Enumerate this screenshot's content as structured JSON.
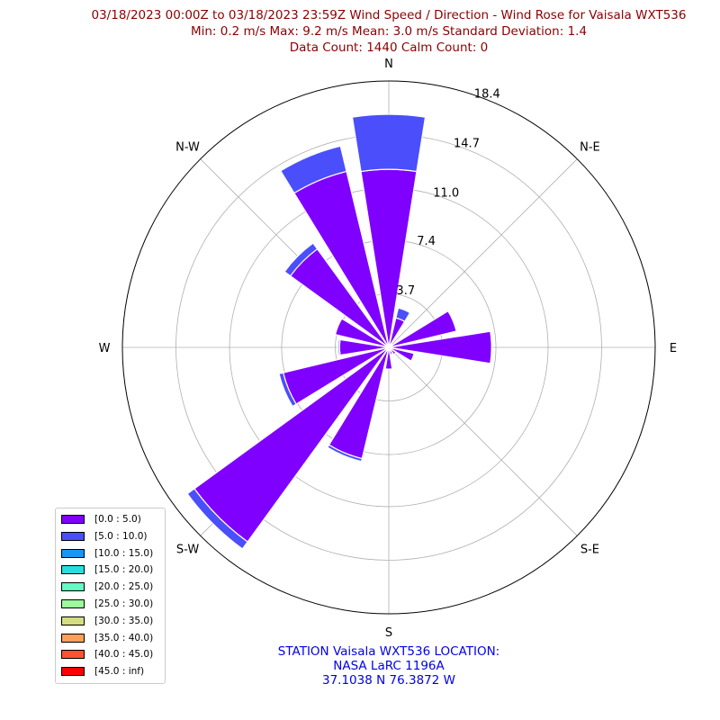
{
  "title": {
    "line1": "03/18/2023 00:00Z to 03/18/2023 23:59Z Wind Speed / Direction - Wind Rose for Vaisala WXT536",
    "line2": "Min: 0.2 m/s   Max: 9.2 m/s   Mean: 3.0 m/s  Standard Deviation: 1.4",
    "line3": "Data Count: 1440  Calm Count:  0"
  },
  "station": {
    "line1": "STATION Vaisala WXT536 LOCATION:",
    "line2": "NASA LaRC 1196A",
    "line3": "37.1038 N 76.3872 W"
  },
  "chart_data": {
    "type": "bar",
    "subtype": "wind-rose",
    "directions": [
      "N",
      "NNE",
      "NE",
      "ENE",
      "E",
      "ESE",
      "SE",
      "SSE",
      "S",
      "SSW",
      "SW",
      "WSW",
      "W",
      "WNW",
      "NW",
      "NNW"
    ],
    "direction_labels": [
      "N",
      "N-E",
      "E",
      "S-E",
      "S",
      "S-W",
      "W",
      "N-W"
    ],
    "radial_ticks": [
      "3.7",
      "7.4",
      "11.0",
      "14.7",
      "18.4"
    ],
    "radial_tick_values": [
      3.7,
      7.4,
      11.0,
      14.7,
      18.4
    ],
    "rmax": 18.4,
    "series": [
      {
        "name": "[0.0 : 5.0)",
        "color": "#7f00ff",
        "values": [
          12.3,
          2.1,
          0.3,
          4.8,
          7.1,
          1.8,
          0.6,
          0.5,
          1.5,
          7.9,
          16.6,
          7.5,
          3.4,
          3.8,
          8.4,
          12.5
        ]
      },
      {
        "name": "[5.0 : 10.0)",
        "color": "#4a4ffb",
        "values": [
          3.8,
          0.7,
          0.0,
          0.0,
          0.0,
          0.0,
          0.0,
          0.0,
          0.0,
          0.2,
          0.6,
          0.3,
          0.1,
          0.0,
          0.5,
          1.8
        ]
      }
    ],
    "legend": {
      "position": "lower-left",
      "entries": [
        {
          "label": "[0.0 : 5.0)",
          "color": "#7f00ff"
        },
        {
          "label": "[5.0 : 10.0)",
          "color": "#4a4ffb"
        },
        {
          "label": "[10.0 : 15.0)",
          "color": "#1996f3"
        },
        {
          "label": "[15.0 : 20.0)",
          "color": "#2adddd"
        },
        {
          "label": "[20.0 : 25.0)",
          "color": "#62fbc4"
        },
        {
          "label": "[25.0 : 30.0)",
          "color": "#9cfa9c"
        },
        {
          "label": "[30.0 : 35.0)",
          "color": "#d4dd80"
        },
        {
          "label": "[35.0 : 40.0)",
          "color": "#ff9f58"
        },
        {
          "label": "[40.0 : 45.0)",
          "color": "#ff5230"
        },
        {
          "label": "[45.0 : inf)",
          "color": "#ff0000"
        }
      ]
    },
    "grid": true
  }
}
